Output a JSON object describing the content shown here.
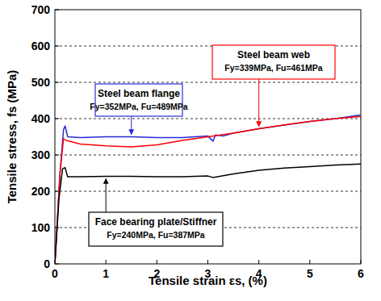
{
  "chart_data": {
    "type": "line",
    "xlabel": "Tensile strain εs, (%)",
    "ylabel": "Tensile stress, fs (MPa)",
    "xlim": [
      0,
      6
    ],
    "xticks": [
      0,
      1,
      2,
      3,
      4,
      5,
      6
    ],
    "ylim": [
      0,
      700
    ],
    "yticks": [
      0,
      100,
      200,
      300,
      400,
      500,
      600,
      700
    ],
    "grid": true,
    "series": [
      {
        "name": "Steel beam flange",
        "color": "#2a2ad8",
        "x": [
          0,
          0.1,
          0.17,
          0.2,
          0.25,
          0.5,
          1,
          1.5,
          2,
          2.5,
          3,
          3.1,
          3.15,
          3.3,
          3.5,
          4,
          4.5,
          5,
          5.5,
          6
        ],
        "values": [
          0,
          250,
          370,
          380,
          350,
          348,
          350,
          350,
          348,
          348,
          352,
          338,
          355,
          352,
          360,
          372,
          382,
          392,
          400,
          410
        ]
      },
      {
        "name": "Steel beam web",
        "color": "#ff0000",
        "x": [
          0,
          0.1,
          0.17,
          0.22,
          0.5,
          1,
          1.5,
          2,
          2.5,
          3,
          3.5,
          4,
          4.5,
          5,
          5.5,
          6
        ],
        "values": [
          0,
          250,
          345,
          340,
          330,
          325,
          322,
          328,
          340,
          350,
          360,
          372,
          383,
          392,
          400,
          406
        ]
      },
      {
        "name": "Face bearing plate/Stiffner",
        "color": "#000000",
        "x": [
          0,
          0.08,
          0.15,
          0.2,
          0.25,
          0.5,
          1,
          1.5,
          2,
          2.5,
          3,
          3.1,
          3.5,
          4,
          4.5,
          5,
          5.5,
          6
        ],
        "values": [
          0,
          180,
          262,
          265,
          240,
          240,
          241,
          241,
          240,
          240,
          242,
          238,
          248,
          258,
          264,
          268,
          272,
          275
        ]
      }
    ],
    "annotations": [
      "Fy=352MPa, Fu=489MPa",
      "Fy=339MPa, Fu=461MPa",
      "Fy=240MPa, Fu=387MPa"
    ]
  }
}
